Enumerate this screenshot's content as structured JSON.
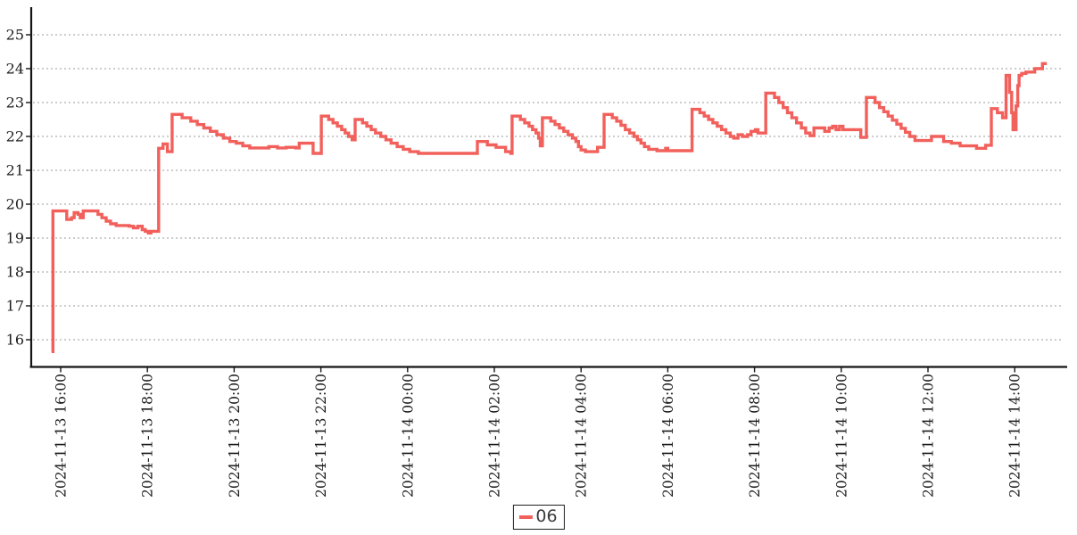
{
  "page": {
    "background": "#ffffff"
  },
  "colors": {
    "line": "#f2605c",
    "grid": "#9a9a9a",
    "axis": "#141414",
    "tick_text": "#1c1c1c",
    "legend_text": "#3c3c3c",
    "legend_border": "#1f1f1f",
    "background": "#ffffff"
  },
  "chart_data": {
    "type": "line",
    "title": "",
    "xlabel": "",
    "ylabel": "",
    "grid": "horizontal dotted gridlines at integer values",
    "legend_position": "bottom-center",
    "x_unit": "hours since 2024-11-13 16:00",
    "xlim_hours": [
      -0.68,
      23.2
    ],
    "ylim": [
      15.1,
      25.8
    ],
    "y_ticks": [
      16,
      17,
      18,
      19,
      20,
      21,
      22,
      23,
      24,
      25
    ],
    "x_ticks": [
      {
        "t": 0,
        "label": "2024-11-13 16:00"
      },
      {
        "t": 2,
        "label": "2024-11-13 18:00"
      },
      {
        "t": 4,
        "label": "2024-11-13 20:00"
      },
      {
        "t": 6,
        "label": "2024-11-13 22:00"
      },
      {
        "t": 8,
        "label": "2024-11-14 00:00"
      },
      {
        "t": 10,
        "label": "2024-11-14 02:00"
      },
      {
        "t": 12,
        "label": "2024-11-14 04:00"
      },
      {
        "t": 14,
        "label": "2024-11-14 06:00"
      },
      {
        "t": 16,
        "label": "2024-11-14 08:00"
      },
      {
        "t": 18,
        "label": "2024-11-14 10:00"
      },
      {
        "t": 20,
        "label": "2024-11-14 12:00"
      },
      {
        "t": 22,
        "label": "2024-11-14 14:00"
      }
    ],
    "series": [
      {
        "name": "06",
        "color": "#f2605c",
        "step": "after",
        "points": [
          [
            -0.21,
            15.65
          ],
          [
            -0.18,
            19.8
          ],
          [
            0.1,
            19.8
          ],
          [
            0.14,
            19.55
          ],
          [
            0.25,
            19.6
          ],
          [
            0.31,
            19.75
          ],
          [
            0.4,
            19.7
          ],
          [
            0.45,
            19.6
          ],
          [
            0.52,
            19.8
          ],
          [
            0.8,
            19.8
          ],
          [
            0.86,
            19.7
          ],
          [
            0.95,
            19.6
          ],
          [
            1.05,
            19.5
          ],
          [
            1.15,
            19.42
          ],
          [
            1.28,
            19.37
          ],
          [
            1.58,
            19.35
          ],
          [
            1.68,
            19.3
          ],
          [
            1.78,
            19.35
          ],
          [
            1.88,
            19.25
          ],
          [
            1.95,
            19.2
          ],
          [
            2.02,
            19.15
          ],
          [
            2.08,
            19.2
          ],
          [
            2.24,
            19.2
          ],
          [
            2.26,
            21.65
          ],
          [
            2.33,
            21.65
          ],
          [
            2.36,
            21.78
          ],
          [
            2.43,
            21.78
          ],
          [
            2.46,
            21.55
          ],
          [
            2.54,
            21.55
          ],
          [
            2.57,
            22.65
          ],
          [
            2.68,
            22.65
          ],
          [
            2.8,
            22.55
          ],
          [
            3.0,
            22.45
          ],
          [
            3.15,
            22.35
          ],
          [
            3.3,
            22.25
          ],
          [
            3.45,
            22.15
          ],
          [
            3.6,
            22.05
          ],
          [
            3.75,
            21.95
          ],
          [
            3.9,
            21.85
          ],
          [
            4.05,
            21.8
          ],
          [
            4.2,
            21.72
          ],
          [
            4.36,
            21.66
          ],
          [
            4.6,
            21.66
          ],
          [
            4.8,
            21.7
          ],
          [
            5.0,
            21.66
          ],
          [
            5.2,
            21.68
          ],
          [
            5.42,
            21.66
          ],
          [
            5.5,
            21.8
          ],
          [
            5.72,
            21.8
          ],
          [
            5.82,
            21.5
          ],
          [
            5.98,
            21.5
          ],
          [
            6.01,
            22.6
          ],
          [
            6.1,
            22.6
          ],
          [
            6.18,
            22.5
          ],
          [
            6.28,
            22.4
          ],
          [
            6.38,
            22.3
          ],
          [
            6.48,
            22.2
          ],
          [
            6.56,
            22.1
          ],
          [
            6.64,
            22.0
          ],
          [
            6.72,
            21.9
          ],
          [
            6.79,
            22.5
          ],
          [
            6.88,
            22.5
          ],
          [
            6.96,
            22.4
          ],
          [
            7.06,
            22.3
          ],
          [
            7.16,
            22.2
          ],
          [
            7.26,
            22.1
          ],
          [
            7.38,
            22.0
          ],
          [
            7.5,
            21.9
          ],
          [
            7.62,
            21.8
          ],
          [
            7.76,
            21.7
          ],
          [
            7.9,
            21.62
          ],
          [
            8.05,
            21.55
          ],
          [
            8.25,
            21.5
          ],
          [
            8.7,
            21.5
          ],
          [
            9.2,
            21.5
          ],
          [
            9.55,
            21.5
          ],
          [
            9.61,
            21.85
          ],
          [
            9.77,
            21.85
          ],
          [
            9.84,
            21.75
          ],
          [
            9.97,
            21.75
          ],
          [
            10.04,
            21.68
          ],
          [
            10.18,
            21.68
          ],
          [
            10.26,
            21.55
          ],
          [
            10.38,
            21.5
          ],
          [
            10.41,
            22.6
          ],
          [
            10.52,
            22.6
          ],
          [
            10.6,
            22.5
          ],
          [
            10.7,
            22.4
          ],
          [
            10.8,
            22.3
          ],
          [
            10.88,
            22.2
          ],
          [
            10.96,
            22.1
          ],
          [
            11.02,
            21.95
          ],
          [
            11.06,
            21.72
          ],
          [
            11.11,
            22.55
          ],
          [
            11.22,
            22.55
          ],
          [
            11.3,
            22.45
          ],
          [
            11.4,
            22.35
          ],
          [
            11.5,
            22.25
          ],
          [
            11.6,
            22.15
          ],
          [
            11.7,
            22.05
          ],
          [
            11.8,
            21.95
          ],
          [
            11.88,
            21.85
          ],
          [
            11.94,
            21.7
          ],
          [
            12.0,
            21.6
          ],
          [
            12.1,
            21.55
          ],
          [
            12.3,
            21.55
          ],
          [
            12.38,
            21.68
          ],
          [
            12.48,
            21.68
          ],
          [
            12.53,
            22.65
          ],
          [
            12.64,
            22.65
          ],
          [
            12.72,
            22.55
          ],
          [
            12.82,
            22.45
          ],
          [
            12.92,
            22.33
          ],
          [
            13.02,
            22.2
          ],
          [
            13.12,
            22.1
          ],
          [
            13.22,
            22.0
          ],
          [
            13.3,
            21.9
          ],
          [
            13.38,
            21.8
          ],
          [
            13.46,
            21.7
          ],
          [
            13.56,
            21.62
          ],
          [
            13.75,
            21.58
          ],
          [
            13.9,
            21.58
          ],
          [
            13.95,
            21.65
          ],
          [
            14.0,
            21.58
          ],
          [
            14.25,
            21.58
          ],
          [
            14.5,
            21.58
          ],
          [
            14.56,
            22.8
          ],
          [
            14.66,
            22.8
          ],
          [
            14.74,
            22.7
          ],
          [
            14.84,
            22.6
          ],
          [
            14.94,
            22.5
          ],
          [
            15.04,
            22.4
          ],
          [
            15.14,
            22.3
          ],
          [
            15.24,
            22.2
          ],
          [
            15.34,
            22.1
          ],
          [
            15.44,
            22.0
          ],
          [
            15.52,
            21.95
          ],
          [
            15.62,
            22.05
          ],
          [
            15.72,
            22.0
          ],
          [
            15.84,
            22.05
          ],
          [
            15.92,
            22.15
          ],
          [
            16.02,
            22.2
          ],
          [
            16.08,
            22.1
          ],
          [
            16.22,
            22.1
          ],
          [
            16.26,
            23.28
          ],
          [
            16.38,
            23.28
          ],
          [
            16.46,
            23.15
          ],
          [
            16.56,
            23.0
          ],
          [
            16.66,
            22.85
          ],
          [
            16.76,
            22.7
          ],
          [
            16.86,
            22.55
          ],
          [
            16.97,
            22.4
          ],
          [
            17.08,
            22.25
          ],
          [
            17.18,
            22.1
          ],
          [
            17.28,
            22.02
          ],
          [
            17.37,
            22.25
          ],
          [
            17.55,
            22.25
          ],
          [
            17.62,
            22.15
          ],
          [
            17.72,
            22.25
          ],
          [
            17.8,
            22.3
          ],
          [
            17.88,
            22.2
          ],
          [
            17.96,
            22.3
          ],
          [
            18.04,
            22.2
          ],
          [
            18.15,
            22.2
          ],
          [
            18.4,
            22.2
          ],
          [
            18.45,
            21.97
          ],
          [
            18.54,
            21.97
          ],
          [
            18.58,
            23.15
          ],
          [
            18.7,
            23.15
          ],
          [
            18.78,
            23.0
          ],
          [
            18.88,
            22.85
          ],
          [
            18.98,
            22.73
          ],
          [
            19.08,
            22.6
          ],
          [
            19.18,
            22.48
          ],
          [
            19.28,
            22.36
          ],
          [
            19.38,
            22.24
          ],
          [
            19.48,
            22.12
          ],
          [
            19.58,
            22.0
          ],
          [
            19.7,
            21.88
          ],
          [
            20.04,
            21.88
          ],
          [
            20.08,
            22.0
          ],
          [
            20.3,
            22.0
          ],
          [
            20.36,
            21.85
          ],
          [
            20.54,
            21.8
          ],
          [
            20.74,
            21.72
          ],
          [
            21.05,
            21.72
          ],
          [
            21.12,
            21.65
          ],
          [
            21.28,
            21.65
          ],
          [
            21.33,
            21.74
          ],
          [
            21.43,
            21.74
          ],
          [
            21.46,
            22.82
          ],
          [
            21.56,
            22.82
          ],
          [
            21.6,
            22.7
          ],
          [
            21.68,
            22.7
          ],
          [
            21.72,
            22.55
          ],
          [
            21.78,
            22.55
          ],
          [
            21.8,
            23.8
          ],
          [
            21.84,
            23.8
          ],
          [
            21.88,
            23.3
          ],
          [
            21.93,
            22.7
          ],
          [
            21.96,
            22.2
          ],
          [
            21.99,
            22.2
          ],
          [
            22.03,
            22.9
          ],
          [
            22.07,
            23.5
          ],
          [
            22.1,
            23.8
          ],
          [
            22.16,
            23.86
          ],
          [
            22.26,
            23.9
          ],
          [
            22.42,
            23.9
          ],
          [
            22.46,
            24.0
          ],
          [
            22.6,
            24.0
          ],
          [
            22.64,
            24.15
          ],
          [
            22.74,
            24.15
          ]
        ]
      }
    ]
  }
}
